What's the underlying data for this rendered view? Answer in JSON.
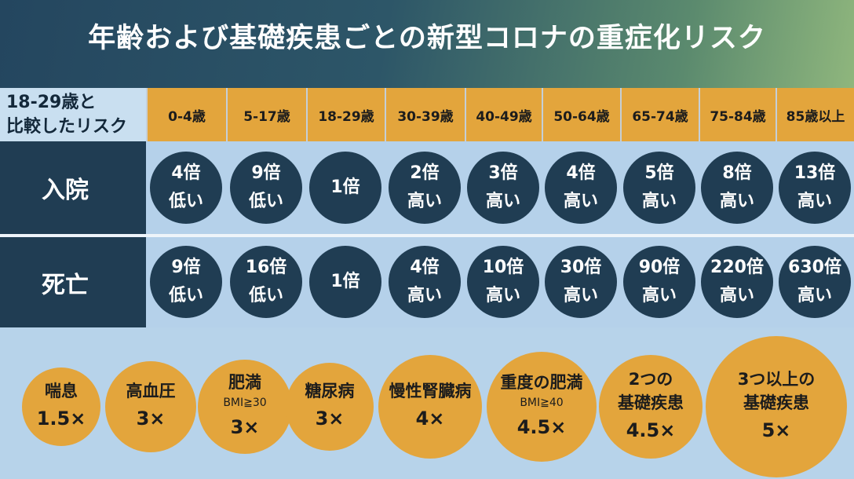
{
  "title": "年齢および基礎疾患ごとの新型コロナの重症化リスク",
  "corner_label": [
    "18-29歳と",
    "比較したリスク"
  ],
  "age_groups": [
    "0-4歳",
    "5-17歳",
    "18-29歳",
    "30-39歳",
    "40-49歳",
    "50-64歳",
    "65-74歳",
    "75-84歳",
    "85歳以上"
  ],
  "hospitalization": {
    "label": "入院",
    "cells": [
      {
        "value": "4倍",
        "dir": "低い"
      },
      {
        "value": "9倍",
        "dir": "低い"
      },
      {
        "value": "1倍",
        "dir": ""
      },
      {
        "value": "2倍",
        "dir": "高い"
      },
      {
        "value": "3倍",
        "dir": "高い"
      },
      {
        "value": "4倍",
        "dir": "高い"
      },
      {
        "value": "5倍",
        "dir": "高い"
      },
      {
        "value": "8倍",
        "dir": "高い"
      },
      {
        "value": "13倍",
        "dir": "高い"
      }
    ]
  },
  "death": {
    "label": "死亡",
    "cells": [
      {
        "value": "9倍",
        "dir": "低い"
      },
      {
        "value": "16倍",
        "dir": "低い"
      },
      {
        "value": "1倍",
        "dir": ""
      },
      {
        "value": "4倍",
        "dir": "高い"
      },
      {
        "value": "10倍",
        "dir": "高い"
      },
      {
        "value": "30倍",
        "dir": "高い"
      },
      {
        "value": "90倍",
        "dir": "高い"
      },
      {
        "value": "220倍",
        "dir": "高い"
      },
      {
        "value": "630倍",
        "dir": "高い"
      }
    ]
  },
  "conditions": [
    {
      "name": [
        "喘息"
      ],
      "sub": "",
      "value": "1.5×"
    },
    {
      "name": [
        "高血圧"
      ],
      "sub": "",
      "value": "3×"
    },
    {
      "name": [
        "肥満"
      ],
      "sub": "BMI≧30",
      "value": "3×"
    },
    {
      "name": [
        "糖尿病"
      ],
      "sub": "",
      "value": "3×"
    },
    {
      "name": [
        "慢性腎臓病"
      ],
      "sub": "",
      "value": "4×"
    },
    {
      "name": [
        "重度の肥満"
      ],
      "sub": "BMI≧40",
      "value": "4.5×"
    },
    {
      "name": [
        "2つの",
        "基礎疾患"
      ],
      "sub": "",
      "value": "4.5×"
    },
    {
      "name": [
        "3つ以上の",
        "基礎疾患"
      ],
      "sub": "",
      "value": "5×"
    }
  ],
  "colors": {
    "navy": "#203d53",
    "orange": "#e3a53c",
    "light_blue": "#b5d1ea"
  }
}
